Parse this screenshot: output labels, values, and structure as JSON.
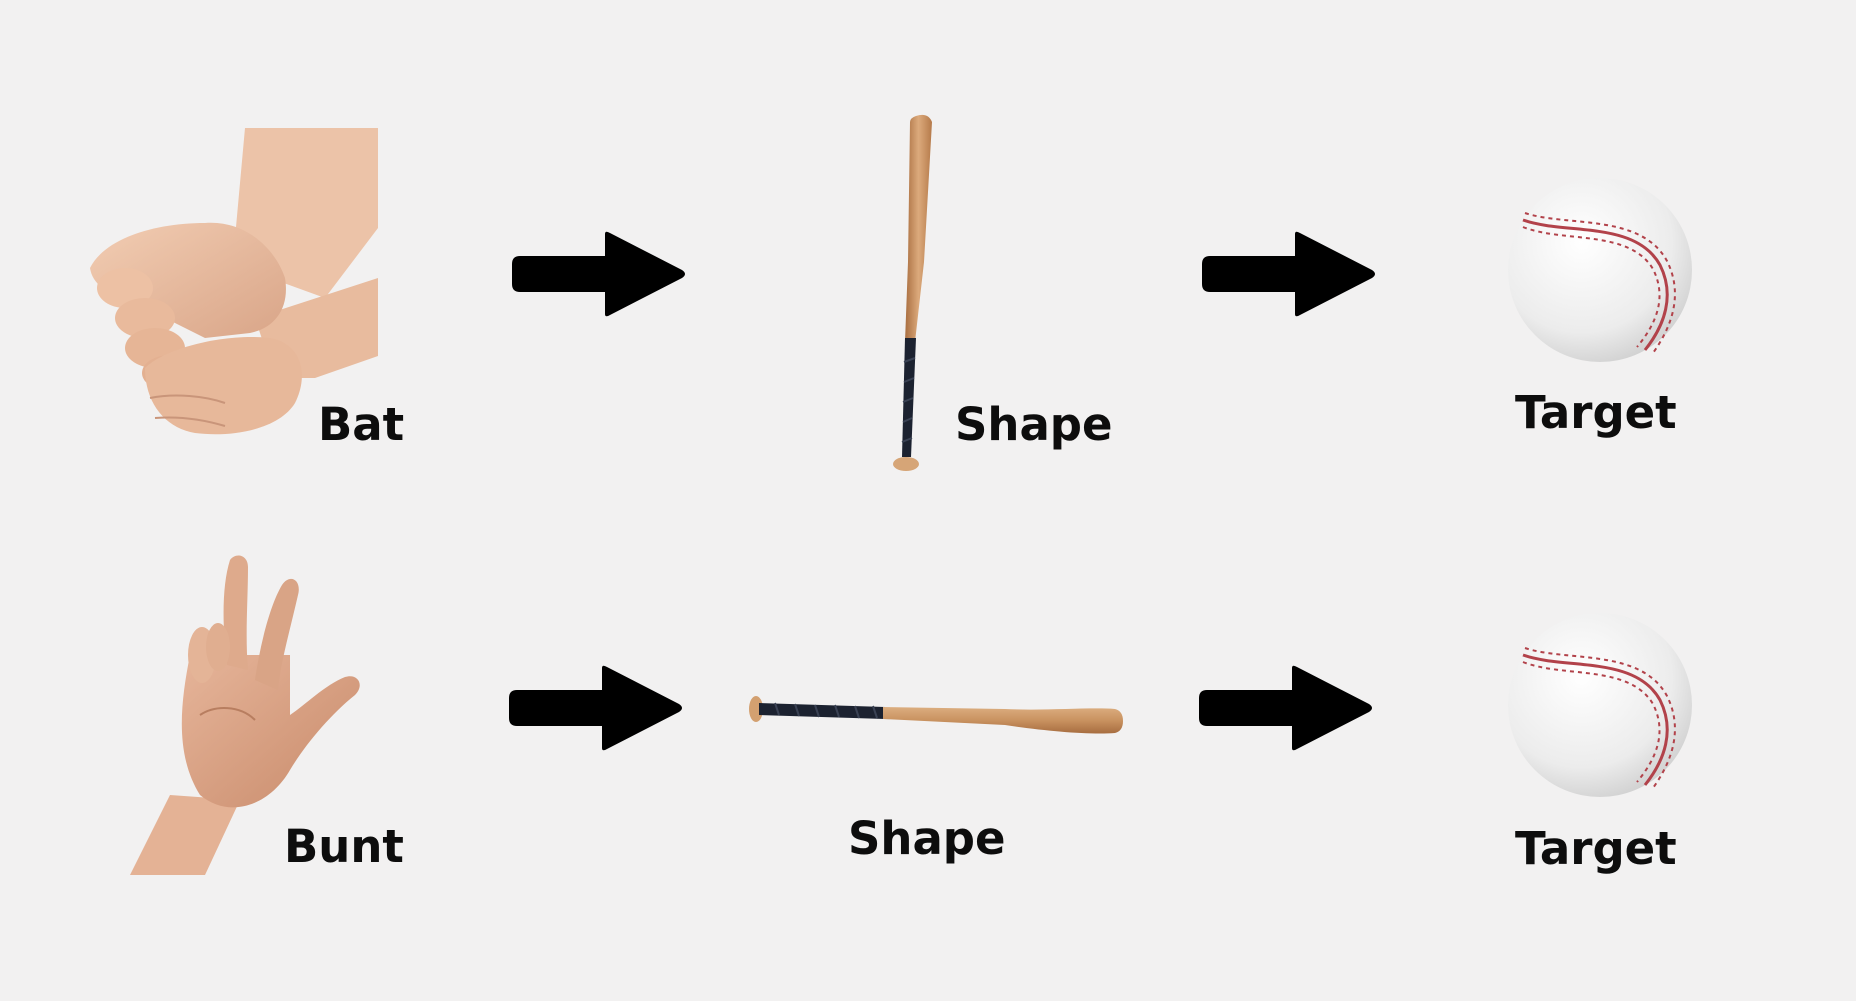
{
  "rows": [
    {
      "gesture": {
        "label": "Bat",
        "icon": "fist-gesture-icon"
      },
      "shape": {
        "label": "Shape",
        "icon": "vertical-bat-icon"
      },
      "target": {
        "label": "Target",
        "icon": "baseball-icon"
      }
    },
    {
      "gesture": {
        "label": "Bunt",
        "icon": "two-finger-gesture-icon"
      },
      "shape": {
        "label": "Shape",
        "icon": "horizontal-bat-icon"
      },
      "target": {
        "label": "Target",
        "icon": "baseball-icon"
      }
    }
  ],
  "arrow_icon": "arrow-right-icon",
  "colors": {
    "background": "#f2f1f1",
    "arrow": "#000000",
    "text": "#0d0d0d",
    "skin": "#e8b99a",
    "wood": "#c89060",
    "grip": "#1c2230",
    "ball": "#f3f3f3",
    "stitch": "#b2424a"
  }
}
